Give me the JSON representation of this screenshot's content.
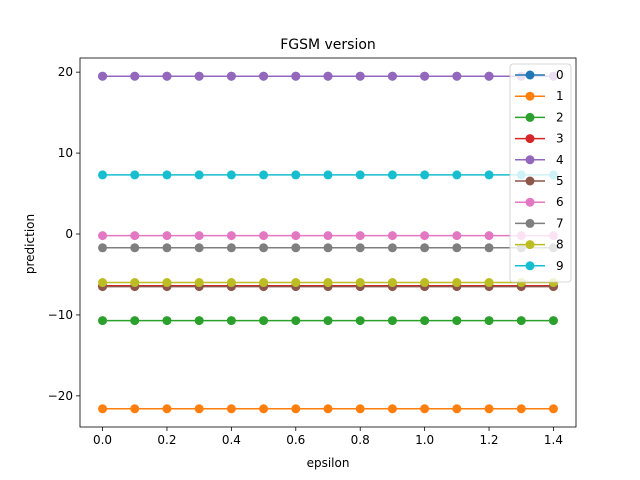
{
  "chart_data": {
    "type": "line",
    "title": "FGSM version",
    "xlabel": "epsilon",
    "ylabel": "prediction",
    "xlim": [
      -0.07,
      1.47
    ],
    "ylim": [
      -23.85,
      21.75
    ],
    "xticks": [
      0.0,
      0.2,
      0.4,
      0.6,
      0.8,
      1.0,
      1.2,
      1.4
    ],
    "xtick_labels": [
      "0.0",
      "0.2",
      "0.4",
      "0.6",
      "0.8",
      "1.0",
      "1.2",
      "1.4"
    ],
    "yticks": [
      -20,
      -10,
      0,
      10,
      20
    ],
    "ytick_labels": [
      "−20",
      "−10",
      "0",
      "10",
      "20"
    ],
    "x": [
      0.0,
      0.1,
      0.2,
      0.3,
      0.4,
      0.5,
      0.6,
      0.7,
      0.8,
      0.9,
      1.0,
      1.1,
      1.2,
      1.3,
      1.4
    ],
    "grid": false,
    "legend_position": "top-right",
    "marker": "circle",
    "series": [
      {
        "name": "0",
        "color": "#1f77b4",
        "value": 19.5
      },
      {
        "name": "1",
        "color": "#ff7f0e",
        "value": -21.6
      },
      {
        "name": "2",
        "color": "#2ca02c",
        "value": -10.7
      },
      {
        "name": "3",
        "color": "#d62728",
        "value": -6.4
      },
      {
        "name": "4",
        "color": "#9467bd",
        "value": 19.5
      },
      {
        "name": "5",
        "color": "#8c564b",
        "value": -6.5
      },
      {
        "name": "6",
        "color": "#e377c2",
        "value": -0.2
      },
      {
        "name": "7",
        "color": "#7f7f7f",
        "value": -1.7
      },
      {
        "name": "8",
        "color": "#bcbd22",
        "value": -6.0
      },
      {
        "name": "9",
        "color": "#17becf",
        "value": 7.3
      }
    ]
  }
}
